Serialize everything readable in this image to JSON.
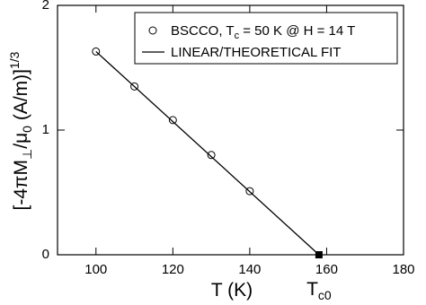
{
  "chart_data": {
    "type": "scatter",
    "xlabel": "T (K)",
    "ylabel": [
      "[-4πM",
      "⊥",
      "/μ",
      "0",
      " (A/m)]",
      "1/3"
    ],
    "xlim": [
      90,
      180
    ],
    "xticks": [
      100,
      120,
      140,
      160,
      180
    ],
    "ylim": [
      0,
      2
    ],
    "yticks": [
      0,
      1,
      2
    ],
    "series": [
      {
        "name": [
          "BSCCO, T",
          "c",
          " = 50 K @ H = 14 T"
        ],
        "color": "#000000",
        "marker": "open-circle",
        "x": [
          100,
          110,
          120,
          130,
          140
        ],
        "values": [
          1.63,
          1.35,
          1.08,
          0.8,
          0.51
        ]
      },
      {
        "name": [
          "LINEAR/THEORETICAL FIT"
        ],
        "color": "#000000",
        "marker": "line",
        "x": [
          100,
          158
        ],
        "values": [
          1.63,
          0
        ]
      }
    ],
    "annotation": {
      "text": [
        "T",
        "c0"
      ],
      "x": 158,
      "y": 0
    }
  }
}
